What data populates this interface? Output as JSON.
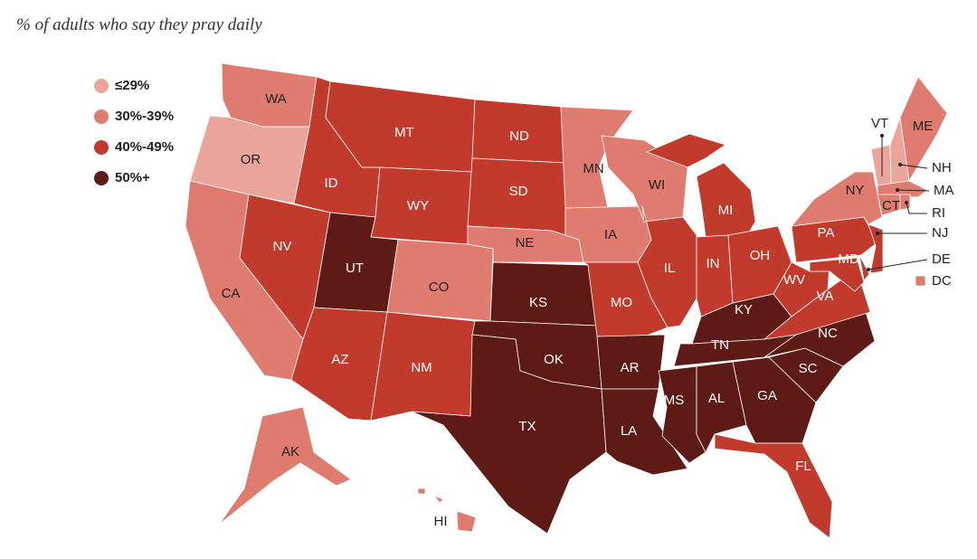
{
  "title": "% of adults who say they pray daily",
  "legend": [
    {
      "label": "≤29%",
      "color": "#eba59b"
    },
    {
      "label": "30%-39%",
      "color": "#e07b6f"
    },
    {
      "label": "40%-49%",
      "color": "#c23a2c"
    },
    {
      "label": "50%+",
      "color": "#5e1b15"
    }
  ],
  "states": [
    {
      "label": "WA",
      "bin": "30%-39%"
    },
    {
      "label": "OR",
      "bin": "≤29%"
    },
    {
      "label": "CA",
      "bin": "30%-39%"
    },
    {
      "label": "NV",
      "bin": "40%-49%"
    },
    {
      "label": "ID",
      "bin": "40%-49%"
    },
    {
      "label": "MT",
      "bin": "40%-49%"
    },
    {
      "label": "WY",
      "bin": "40%-49%"
    },
    {
      "label": "UT",
      "bin": "50%+"
    },
    {
      "label": "AZ",
      "bin": "40%-49%"
    },
    {
      "label": "CO",
      "bin": "30%-39%"
    },
    {
      "label": "NM",
      "bin": "40%-49%"
    },
    {
      "label": "ND",
      "bin": "40%-49%"
    },
    {
      "label": "SD",
      "bin": "40%-49%"
    },
    {
      "label": "NE",
      "bin": "30%-39%"
    },
    {
      "label": "KS",
      "bin": "50%+"
    },
    {
      "label": "OK",
      "bin": "50%+"
    },
    {
      "label": "TX",
      "bin": "50%+"
    },
    {
      "label": "MN",
      "bin": "30%-39%"
    },
    {
      "label": "IA",
      "bin": "30%-39%"
    },
    {
      "label": "MO",
      "bin": "40%-49%"
    },
    {
      "label": "AR",
      "bin": "50%+"
    },
    {
      "label": "LA",
      "bin": "50%+"
    },
    {
      "label": "WI",
      "bin": "30%-39%"
    },
    {
      "label": "IL",
      "bin": "40%-49%"
    },
    {
      "label": "MI",
      "bin": "40%-49%"
    },
    {
      "label": "IN",
      "bin": "40%-49%"
    },
    {
      "label": "OH",
      "bin": "40%-49%"
    },
    {
      "label": "KY",
      "bin": "50%+"
    },
    {
      "label": "TN",
      "bin": "50%+"
    },
    {
      "label": "MS",
      "bin": "50%+"
    },
    {
      "label": "AL",
      "bin": "50%+"
    },
    {
      "label": "GA",
      "bin": "50%+"
    },
    {
      "label": "FL",
      "bin": "40%-49%"
    },
    {
      "label": "SC",
      "bin": "50%+"
    },
    {
      "label": "NC",
      "bin": "50%+"
    },
    {
      "label": "VA",
      "bin": "40%-49%"
    },
    {
      "label": "WV",
      "bin": "40%-49%"
    },
    {
      "label": "MD",
      "bin": "40%-49%"
    },
    {
      "label": "DE",
      "bin": "40%-49%"
    },
    {
      "label": "PA",
      "bin": "40%-49%"
    },
    {
      "label": "NJ",
      "bin": "40%-49%"
    },
    {
      "label": "NY",
      "bin": "30%-39%"
    },
    {
      "label": "VT",
      "bin": "≤29%"
    },
    {
      "label": "NH",
      "bin": "≤29%"
    },
    {
      "label": "ME",
      "bin": "30%-39%"
    },
    {
      "label": "MA",
      "bin": "30%-39%"
    },
    {
      "label": "CT",
      "bin": "30%-39%"
    },
    {
      "label": "RI",
      "bin": "30%-39%"
    },
    {
      "label": "DC",
      "bin": "30%-39%"
    },
    {
      "label": "AK",
      "bin": "30%-39%"
    },
    {
      "label": "HI",
      "bin": "30%-39%"
    }
  ]
}
